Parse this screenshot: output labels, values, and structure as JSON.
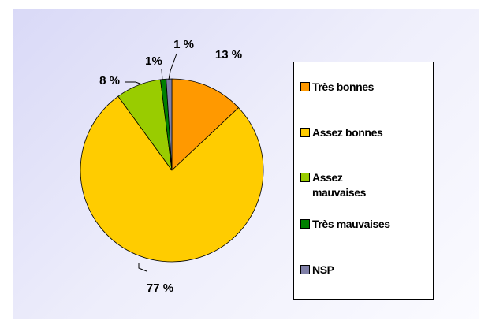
{
  "chart_data": {
    "type": "pie",
    "categories": [
      "Très bonnes",
      "Assez bonnes",
      "Assez mauvaises",
      "Très mauvaises",
      "NSP"
    ],
    "values": [
      13,
      77,
      8,
      1,
      1
    ],
    "value_labels": [
      "13 %",
      "77 %",
      "8 %",
      "1%",
      "1 %"
    ],
    "colors": [
      "#FF9900",
      "#FFCC00",
      "#99CC00",
      "#008000",
      "#8080A8"
    ],
    "legend": "right"
  }
}
